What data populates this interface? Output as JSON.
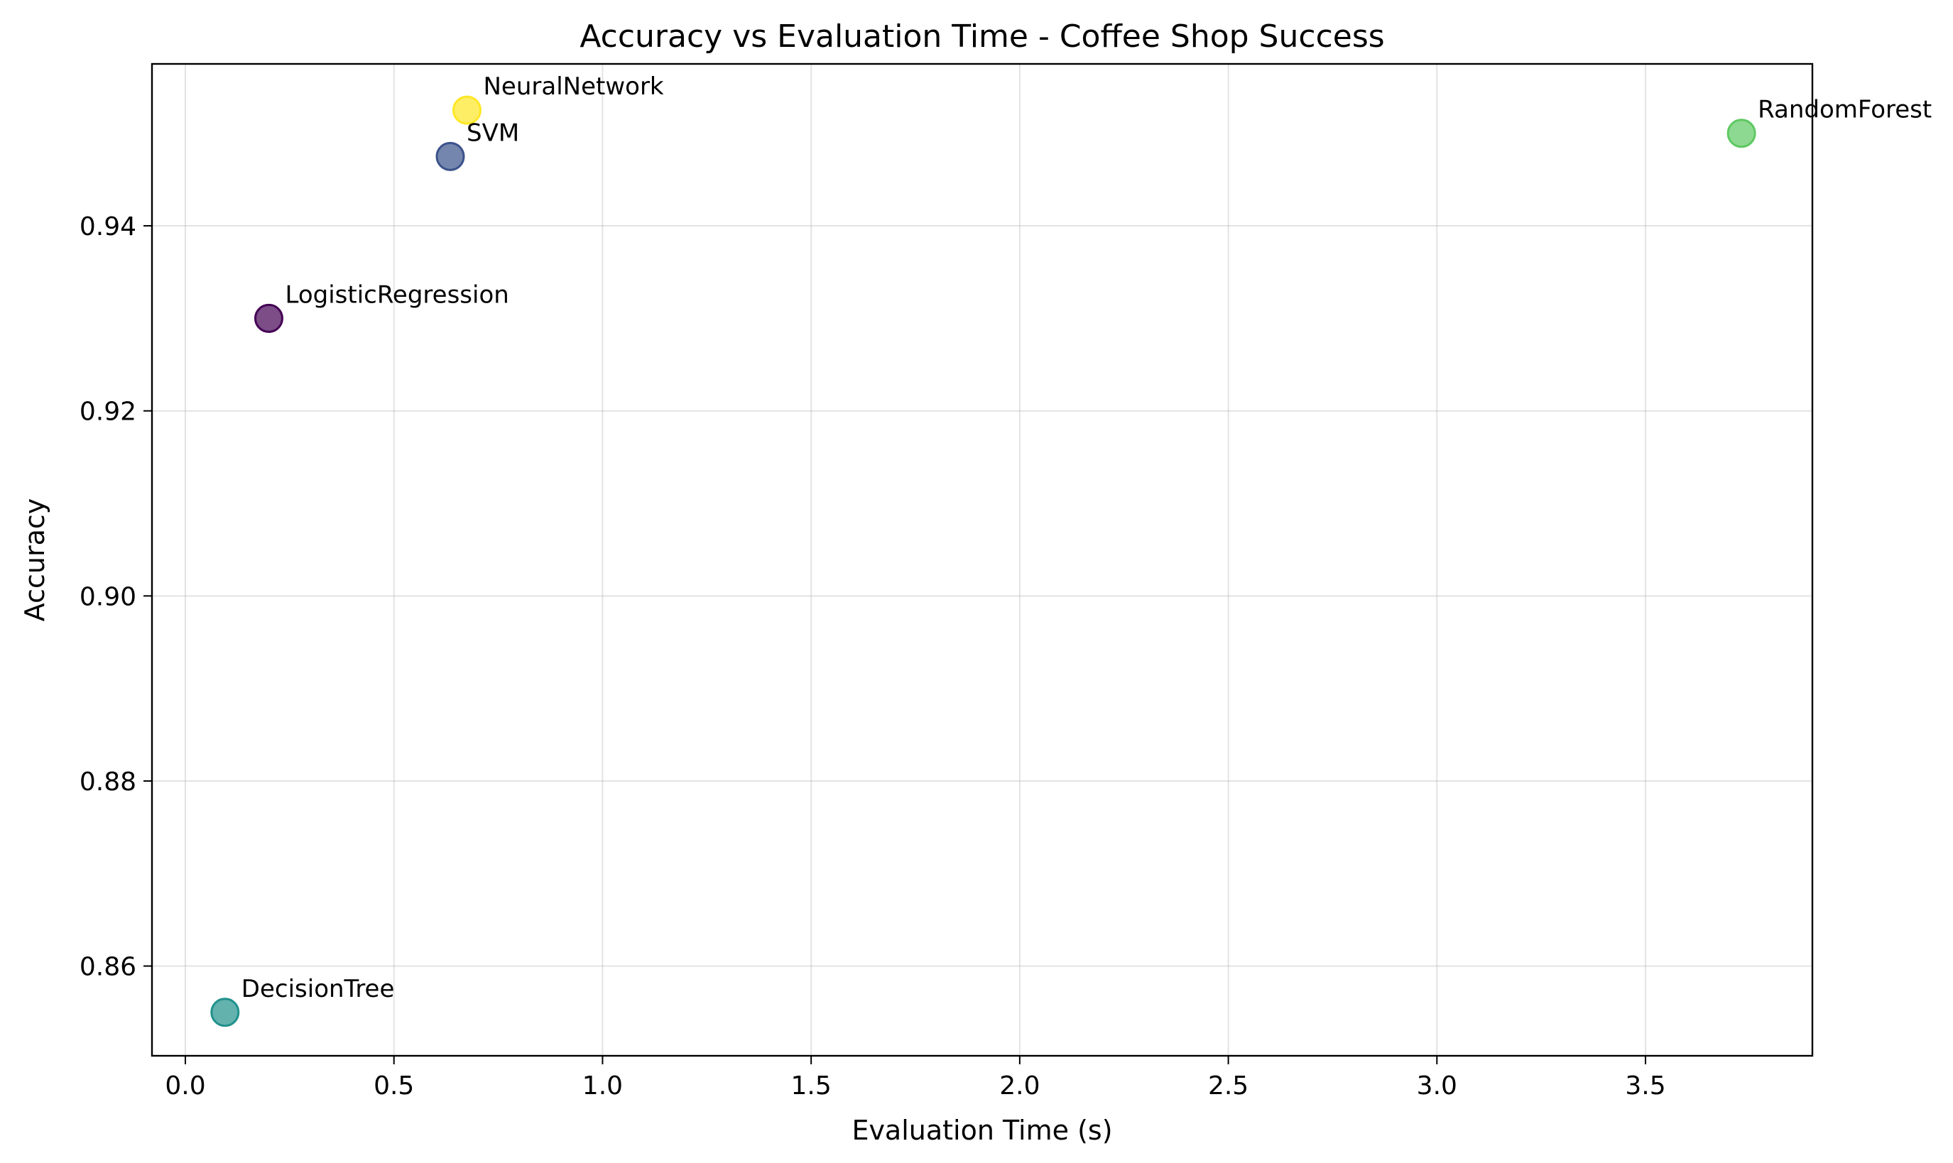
{
  "chart_data": {
    "type": "scatter",
    "title": "Accuracy vs Evaluation Time - Coffee Shop Success",
    "xlabel": "Evaluation Time (s)",
    "ylabel": "Accuracy",
    "xlim": [
      -0.08,
      3.9
    ],
    "ylim": [
      0.8503,
      0.9575
    ],
    "xticks": [
      0.0,
      0.5,
      1.0,
      1.5,
      2.0,
      2.5,
      3.0,
      3.5
    ],
    "xtick_labels": [
      "0.0",
      "0.5",
      "1.0",
      "1.5",
      "2.0",
      "2.5",
      "3.0",
      "3.5"
    ],
    "yticks": [
      0.86,
      0.88,
      0.9,
      0.92,
      0.94
    ],
    "ytick_labels": [
      "0.86",
      "0.88",
      "0.90",
      "0.92",
      "0.94"
    ],
    "grid": true,
    "points": [
      {
        "label": "LogisticRegression",
        "x": 0.2,
        "y": 0.93,
        "color": "#440154"
      },
      {
        "label": "SVM",
        "x": 0.635,
        "y": 0.9475,
        "color": "#3b528b"
      },
      {
        "label": "DecisionTree",
        "x": 0.095,
        "y": 0.855,
        "color": "#21918c"
      },
      {
        "label": "RandomForest",
        "x": 3.73,
        "y": 0.95,
        "color": "#5ec962"
      },
      {
        "label": "NeuralNetwork",
        "x": 0.675,
        "y": 0.9525,
        "color": "#fde725"
      }
    ]
  }
}
